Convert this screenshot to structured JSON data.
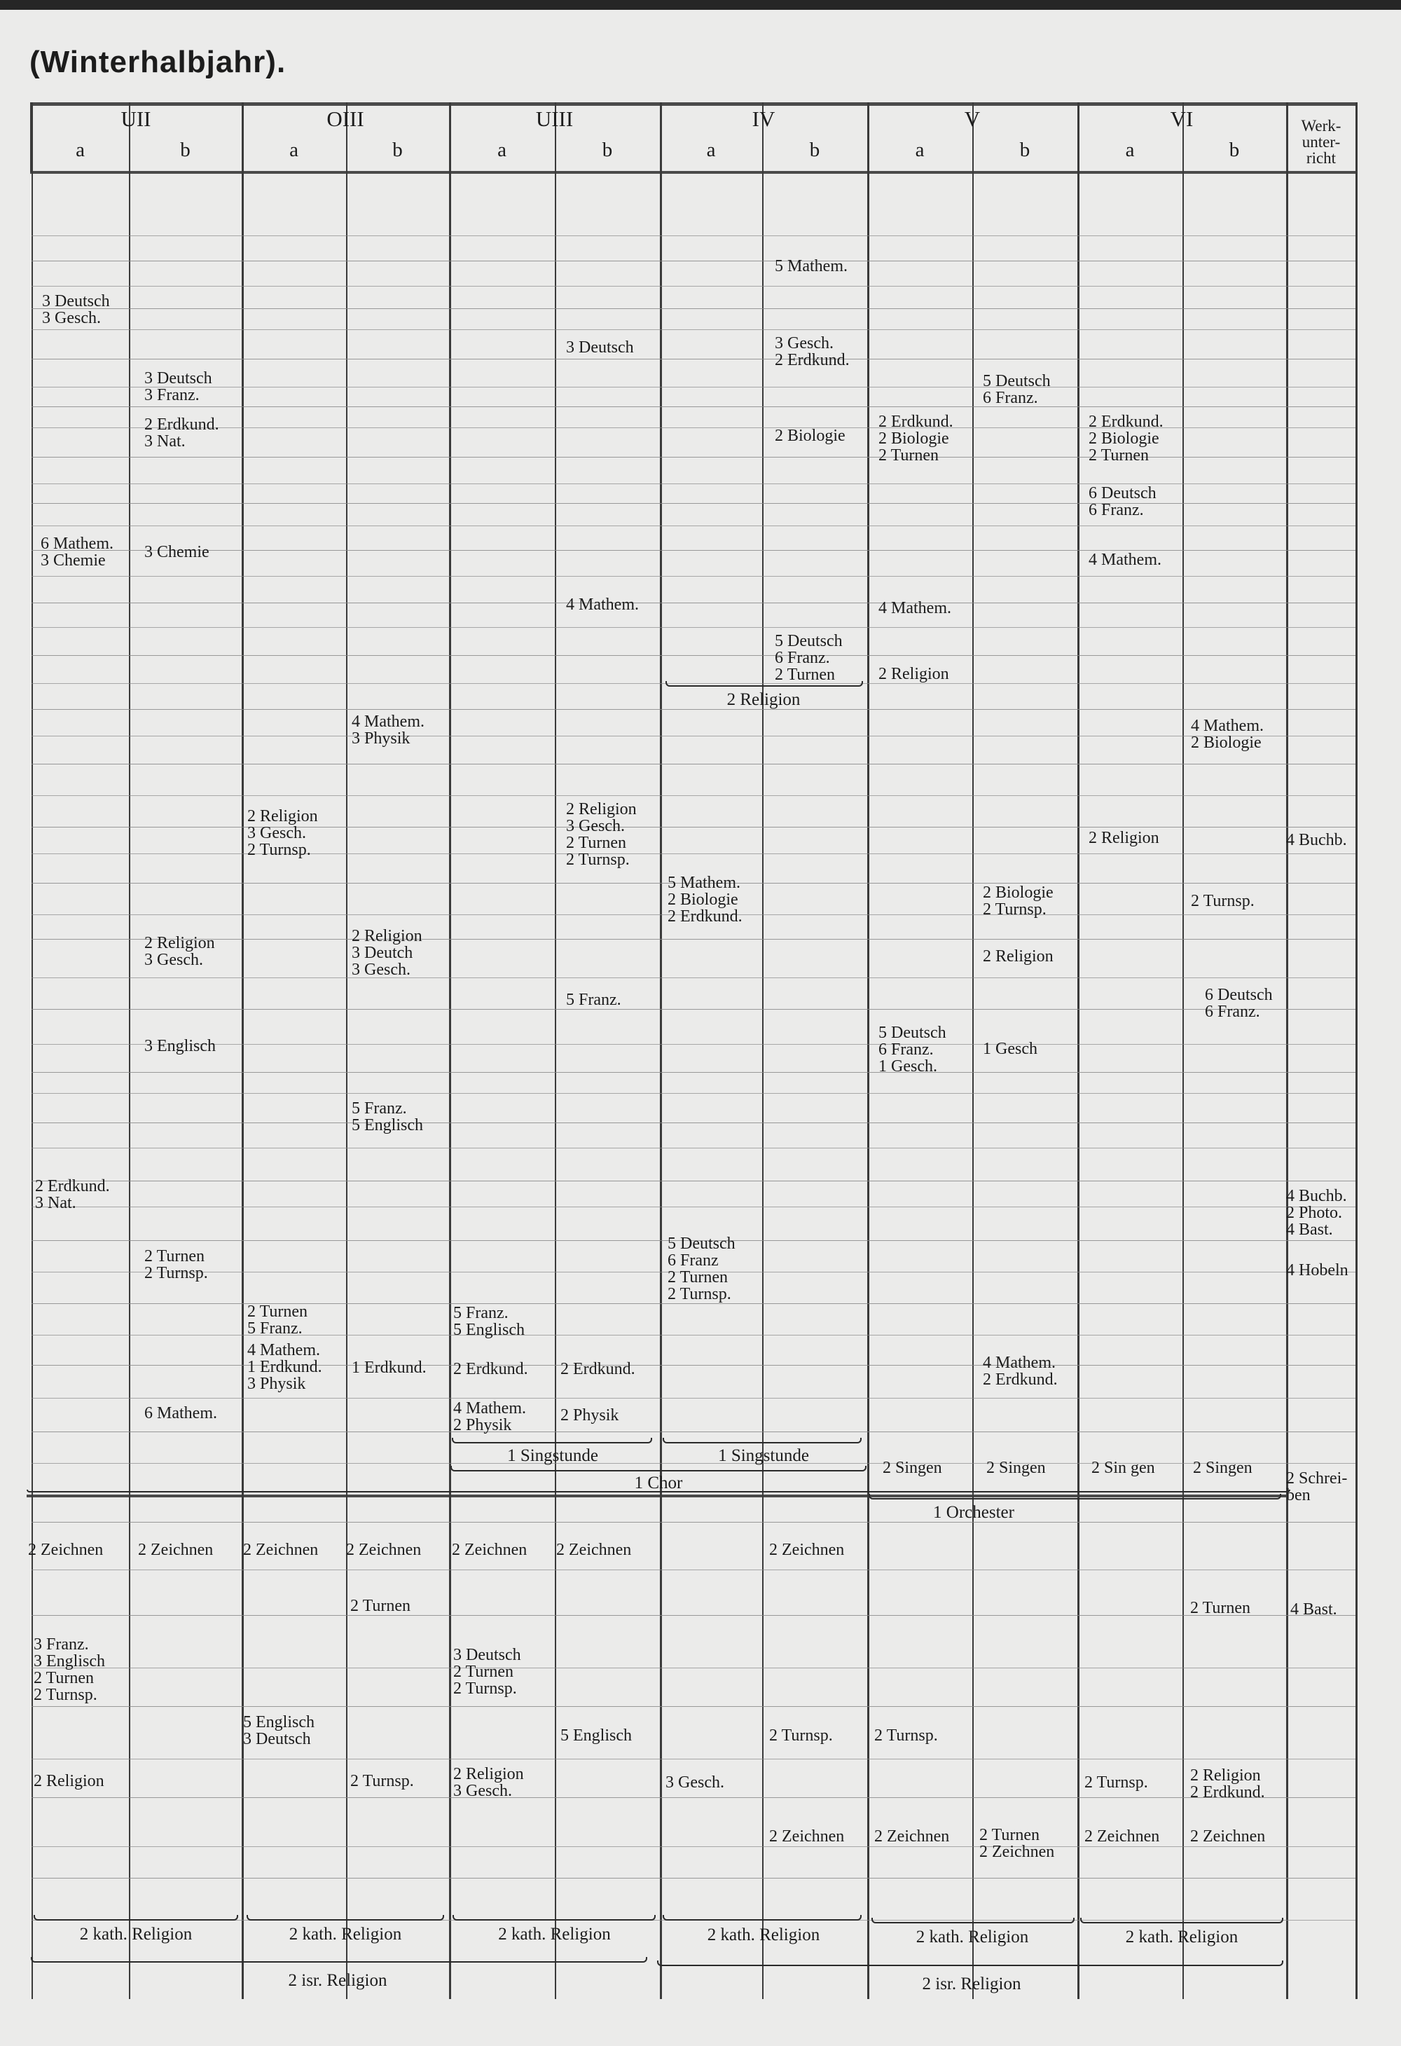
{
  "title": "(Winterhalbjahr).",
  "header": {
    "groups": [
      "UII",
      "OIII",
      "UIII",
      "IV",
      "V",
      "VI"
    ],
    "subs": [
      "a",
      "b",
      "a",
      "b",
      "a",
      "b",
      "a",
      "b",
      "a",
      "b",
      "a",
      "b"
    ],
    "werk": "Werk-\nunter-\nricht"
  },
  "cells": [
    "5 Mathem.",
    "3 Deutsch\n3 Gesch.",
    "3 Deutsch",
    "3 Gesch.\n2 Erdkund.",
    "3 Deutsch\n3 Franz.",
    "5 Deutsch\n6 Franz.",
    "2 Erdkund.\n3 Nat.",
    "2 Biologie",
    "2 Erdkund.\n2 Biologie\n2 Turnen",
    "2 Erdkund.\n2 Biologie\n2 Turnen",
    "6 Deutsch\n6 Franz.",
    "6 Mathem.\n3 Chemie",
    "3 Chemie",
    "4 Mathem.",
    "4 Mathem.",
    "4 Mathem.",
    "5 Deutsch\n6 Franz.\n2 Turnen",
    "2 Religion",
    "4 Mathem.\n3 Physik",
    "4 Mathem.\n2 Biologie",
    "2 Religion\n3 Gesch.\n2 Turnsp.",
    "2 Religion\n3 Gesch.\n2 Turnen\n2 Turnsp.",
    "2 Religion",
    "4 Buchb.",
    "5 Mathem.\n2 Biologie\n2 Erdkund.",
    "2 Biologie\n2 Turnsp.",
    "2 Turnsp.",
    "2 Religion\n3 Gesch.",
    "2 Religion\n3 Deutch\n3 Gesch.",
    "2 Religion",
    "5 Franz.",
    "6 Deutsch\n6 Franz.",
    "3 Englisch",
    "5 Deutsch\n6 Franz.\n1 Gesch.",
    "1 Gesch",
    "5 Franz.\n5 Englisch",
    "2 Erdkund.\n3 Nat.",
    "4 Buchb.\n2 Photo.\n4 Bast.",
    "5 Deutsch\n6 Franz\n2 Turnen\n2 Turnsp.",
    "2 Turnen\n2 Turnsp.",
    "4 Hobeln",
    "2 Turnen\n5 Franz.",
    "5 Franz.\n5 Englisch",
    "4 Mathem.\n1 Erdkund.\n3 Physik",
    "1 Erdkund.",
    "2 Erdkund.",
    "2 Erdkund.",
    "4 Mathem.\n2 Erdkund.",
    "6 Mathem.",
    "4 Mathem.\n2 Physik",
    "2 Physik",
    "2 Singen",
    "2 Singen",
    "2 Sin gen",
    "2 Singen",
    "2 Schrei-\nben",
    "2 Zeichnen",
    "2 Zeichnen",
    "2 Zeichnen",
    "2 Zeichnen",
    "2 Zeichnen",
    "2 Zeichnen",
    "2 Zeichnen",
    "2 Turnen",
    "2 Turnen",
    "4 Bast.",
    "3 Franz.\n3 Englisch\n2 Turnen\n2 Turnsp.",
    "3 Deutsch\n2 Turnen\n2 Turnsp.",
    "5 Englisch\n3 Deutsch",
    "5 Englisch",
    "2 Turnsp.",
    "2 Turnsp.",
    "2 Religion",
    "2 Turnsp.",
    "2 Religion\n3 Gesch.",
    "3 Gesch.",
    "2 Turnsp.",
    "2 Religion\n2 Erdkund.",
    "2 Zeichnen",
    "2 Zeichnen",
    "2 Turnen\n2 Zeichnen",
    "2 Zeichnen",
    "2 Zeichnen"
  ],
  "spans": [
    "2 Religion",
    "1 Singstunde",
    "1 Singstunde",
    "1 Chor",
    "1 Orchester",
    "2 kath. Religion",
    "2 kath. Religion",
    "2 kath. Religion",
    "2 kath. Religion",
    "2 kath. Religion",
    "2 kath. Religion",
    "2 isr. Religion",
    "2 isr. Religion"
  ]
}
